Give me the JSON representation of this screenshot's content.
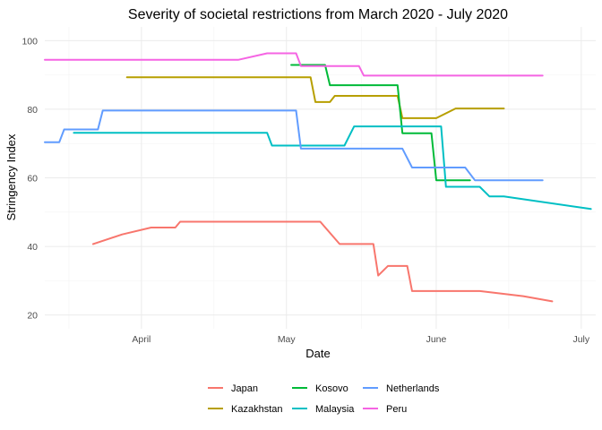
{
  "chart_data": {
    "type": "line",
    "title": "Severity of societal restrictions from March 2020 - July 2020",
    "xlabel": "Date",
    "ylabel": "Stringency Index",
    "x_ticks": [
      {
        "label": "April",
        "date": "2020-04-01"
      },
      {
        "label": "May",
        "date": "2020-05-01"
      },
      {
        "label": "June",
        "date": "2020-06-01"
      },
      {
        "label": "July",
        "date": "2020-07-01"
      }
    ],
    "y_ticks": [
      20,
      40,
      60,
      80,
      100
    ],
    "xlim": [
      "2020-03-12",
      "2020-07-04"
    ],
    "ylim": [
      16,
      104
    ],
    "grid": true,
    "legend_position": "bottom",
    "series": [
      {
        "name": "Japan",
        "color": "#F8766D",
        "points": [
          [
            "2020-03-22",
            40.7
          ],
          [
            "2020-03-28",
            43.5
          ],
          [
            "2020-04-03",
            45.5
          ],
          [
            "2020-04-08",
            45.5
          ],
          [
            "2020-04-09",
            47.2
          ],
          [
            "2020-05-05",
            47.2
          ],
          [
            "2020-05-08",
            47.2
          ],
          [
            "2020-05-12",
            40.7
          ],
          [
            "2020-05-18",
            40.7
          ],
          [
            "2020-05-19",
            40.7
          ],
          [
            "2020-05-20",
            31.5
          ],
          [
            "2020-05-22",
            34.3
          ],
          [
            "2020-05-26",
            34.3
          ],
          [
            "2020-05-27",
            27
          ],
          [
            "2020-06-01",
            27
          ],
          [
            "2020-06-10",
            27
          ],
          [
            "2020-06-19",
            25.5
          ],
          [
            "2020-06-25",
            24
          ]
        ]
      },
      {
        "name": "Kazakhstan",
        "color": "#B79F00",
        "points": [
          [
            "2020-03-29",
            89.3
          ],
          [
            "2020-05-02",
            89.3
          ],
          [
            "2020-05-03",
            89.3
          ],
          [
            "2020-05-06",
            89.3
          ],
          [
            "2020-05-07",
            82.1
          ],
          [
            "2020-05-10",
            82.1
          ],
          [
            "2020-05-11",
            83.9
          ],
          [
            "2020-05-23",
            83.9
          ],
          [
            "2020-05-24",
            83.9
          ],
          [
            "2020-05-25",
            77.4
          ],
          [
            "2020-06-01",
            77.4
          ],
          [
            "2020-06-05",
            80.2
          ],
          [
            "2020-06-15",
            80.2
          ]
        ]
      },
      {
        "name": "Kosovo",
        "color": "#00BA38",
        "points": [
          [
            "2020-05-02",
            92.9
          ],
          [
            "2020-05-05",
            92.9
          ],
          [
            "2020-05-09",
            92.9
          ],
          [
            "2020-05-10",
            87
          ],
          [
            "2020-05-23",
            87
          ],
          [
            "2020-05-24",
            87
          ],
          [
            "2020-05-25",
            73
          ],
          [
            "2020-05-31",
            73
          ],
          [
            "2020-06-01",
            59.3
          ],
          [
            "2020-06-08",
            59.3
          ]
        ]
      },
      {
        "name": "Malaysia",
        "color": "#00BFC4",
        "points": [
          [
            "2020-03-18",
            73.1
          ],
          [
            "2020-04-27",
            73.1
          ],
          [
            "2020-04-28",
            69.4
          ],
          [
            "2020-05-13",
            69.4
          ],
          [
            "2020-05-15",
            75
          ],
          [
            "2020-06-02",
            75
          ],
          [
            "2020-06-03",
            57.4
          ],
          [
            "2020-06-10",
            57.4
          ],
          [
            "2020-06-12",
            54.6
          ],
          [
            "2020-06-15",
            54.6
          ],
          [
            "2020-07-03",
            50.9
          ]
        ]
      },
      {
        "name": "Netherlands",
        "color": "#619CFF",
        "points": [
          [
            "2020-03-12",
            70.4
          ],
          [
            "2020-03-15",
            70.4
          ],
          [
            "2020-03-16",
            74.1
          ],
          [
            "2020-03-23",
            74.1
          ],
          [
            "2020-03-24",
            79.6
          ],
          [
            "2020-05-02",
            79.6
          ],
          [
            "2020-05-03",
            79.6
          ],
          [
            "2020-05-04",
            68.5
          ],
          [
            "2020-05-25",
            68.5
          ],
          [
            "2020-05-27",
            63
          ],
          [
            "2020-06-07",
            63
          ],
          [
            "2020-06-09",
            59.3
          ],
          [
            "2020-06-23",
            59.3
          ]
        ]
      },
      {
        "name": "Peru",
        "color": "#F564E3",
        "points": [
          [
            "2020-03-12",
            94.4
          ],
          [
            "2020-04-21",
            94.4
          ],
          [
            "2020-04-27",
            96.3
          ],
          [
            "2020-05-03",
            96.3
          ],
          [
            "2020-05-04",
            92.6
          ],
          [
            "2020-05-16",
            92.6
          ],
          [
            "2020-05-17",
            89.8
          ],
          [
            "2020-06-23",
            89.8
          ]
        ]
      }
    ]
  }
}
